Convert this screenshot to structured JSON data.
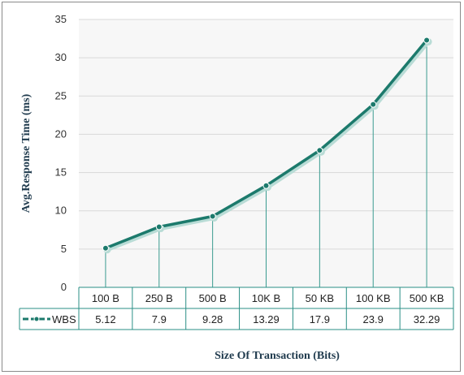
{
  "chart_data": {
    "type": "line",
    "categories": [
      "100 B",
      "250 B",
      "500 B",
      "10K B",
      "50 KB",
      "100 KB",
      "500 KB"
    ],
    "series": [
      {
        "name": "WBS",
        "values": [
          5.12,
          7.9,
          9.28,
          13.29,
          17.9,
          23.9,
          32.29
        ]
      }
    ],
    "values_text": [
      "5.12",
      "7.9",
      "9.28",
      "13.29",
      "17.9",
      "23.9",
      "32.29"
    ],
    "ylabel": "Avg.Response Time (ms)",
    "xlabel": "Size Of Transaction (Bits)",
    "ylim": [
      0,
      35
    ],
    "yticks": [
      0,
      5,
      10,
      15,
      20,
      25,
      30,
      35
    ],
    "ytick_labels": [
      "0",
      "5",
      "10",
      "15",
      "20",
      "25",
      "30",
      "35"
    ],
    "grid": true,
    "data_table": true,
    "colors": {
      "line": "#1c7a6c",
      "shadow": "#b9dcd6",
      "grid": "#d9d9d9",
      "plot_bg": "#f7f7f7",
      "table_border": "#2a8f86"
    }
  }
}
